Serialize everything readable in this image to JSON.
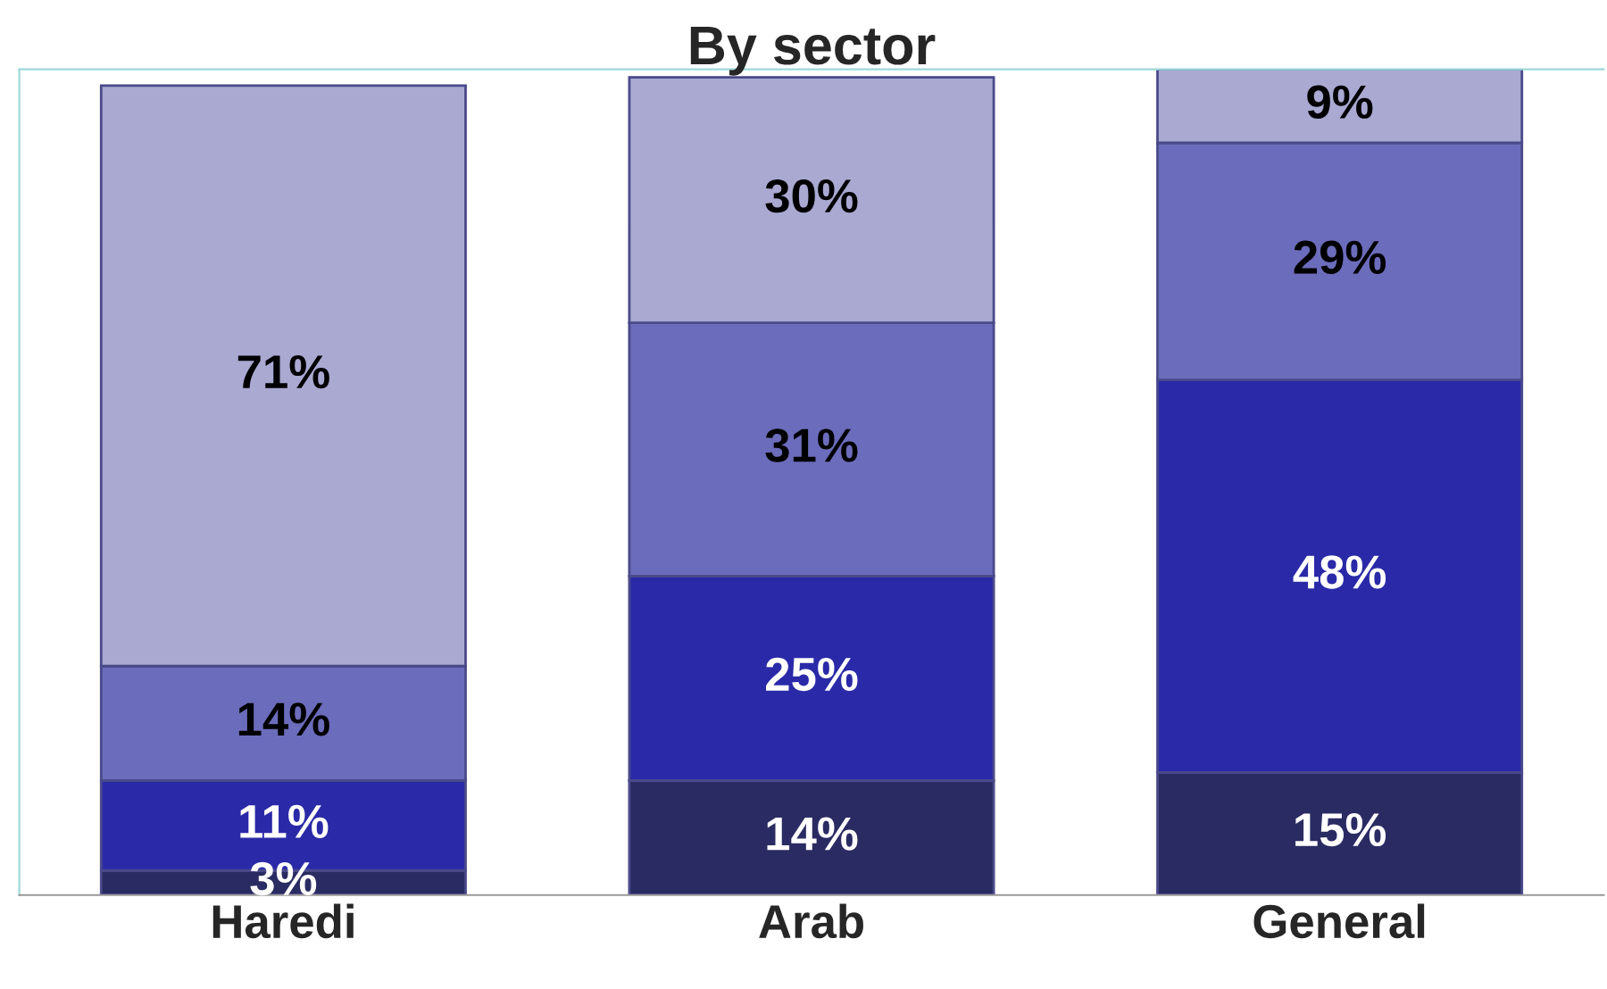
{
  "chart_data": {
    "type": "bar",
    "title": "By sector",
    "categories": [
      "Haredi",
      "Arab",
      "General"
    ],
    "stacked": true,
    "series": [
      {
        "color": "#2b2b63",
        "values": [
          3,
          14,
          15
        ],
        "value_labels": [
          "3%",
          "14%",
          "15%"
        ]
      },
      {
        "color": "#2a2aa8",
        "values": [
          11,
          25,
          48
        ],
        "value_labels": [
          "11%",
          "25%",
          "48%"
        ]
      },
      {
        "color": "#6c6cbc",
        "values": [
          14,
          31,
          29
        ],
        "value_labels": [
          "14%",
          "31%",
          "29%"
        ]
      },
      {
        "color": "#a9a9d2",
        "values": [
          71,
          30,
          9
        ],
        "value_labels": [
          "71%",
          "30%",
          "9%"
        ]
      }
    ],
    "grid": false,
    "legend": false,
    "tick_labels": "x"
  }
}
